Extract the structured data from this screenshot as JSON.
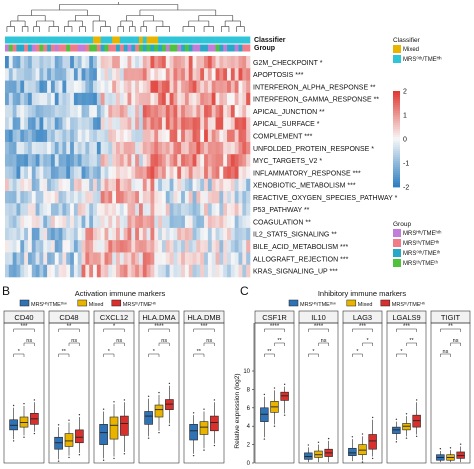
{
  "chart_data": [
    {
      "id": "heatmap",
      "type": "heatmap",
      "annotation_rows": [
        "Classifier",
        "Group"
      ],
      "rows": [
        {
          "name": "G2M_CHECKPOINT",
          "sig": "*"
        },
        {
          "name": "APOPTOSIS",
          "sig": "***"
        },
        {
          "name": "INTERFERON_ALPHA_RESPONSE",
          "sig": "**"
        },
        {
          "name": "INTERFERON_GAMMA_RESPONSE",
          "sig": "**"
        },
        {
          "name": "APICAL_JUNCTION",
          "sig": "**"
        },
        {
          "name": "APICAL_SURFACE",
          "sig": "*"
        },
        {
          "name": "COMPLEMENT",
          "sig": "***"
        },
        {
          "name": "UNFOLDED_PROTEIN_RESPONSE",
          "sig": "*"
        },
        {
          "name": "MYC_TARGETS_V2",
          "sig": "*"
        },
        {
          "name": "INFLAMMATORY_RESPONSE",
          "sig": "***"
        },
        {
          "name": "XENOBIOTIC_METABOLISM",
          "sig": "***"
        },
        {
          "name": "REACTIVE_OXYGEN_SPECIES_PATHWAY",
          "sig": "*"
        },
        {
          "name": "P53_PATHWAY",
          "sig": "**"
        },
        {
          "name": "COAGULATION",
          "sig": "**"
        },
        {
          "name": "IL2_STAT5_SIGNALING",
          "sig": "**"
        },
        {
          "name": "BILE_ACID_METABOLISM",
          "sig": "***"
        },
        {
          "name": "ALLOGRAFT_REJECTION",
          "sig": "***"
        },
        {
          "name": "KRAS_SIGNALING_UP",
          "sig": "***"
        }
      ],
      "color_scale": {
        "min": -2,
        "max": 2,
        "ticks": [
          2,
          1,
          0,
          -1,
          -2
        ],
        "low": "#2f7fc1",
        "mid": "#f7f7f7",
        "high": "#e03a32"
      },
      "legend_classifier": {
        "title": "Classifier",
        "items": [
          "Mixed",
          "MRS⁰ᵗʰ/TMEᴴʰ"
        ],
        "colors": [
          "#e8b400",
          "#2fc5d8"
        ]
      },
      "legend_group": {
        "title": "Group",
        "items": [
          "MRSᴴʰ/TMEʰᵗʰ",
          "MRSᵗʰ/TMEᴴʰ",
          "MRS⁰ᵗʰ/TMEᵗʰ",
          "MRSᵗʰ/TMEᵗʰ"
        ],
        "colors": [
          "#c27dd8",
          "#f07c8a",
          "#27a8c8",
          "#4fc23c"
        ]
      }
    },
    {
      "id": "activation",
      "type": "box",
      "panel_letter": "B",
      "title": "Activation immune markers",
      "legend": [
        "MRSᴴʰ/TMEᵗʰʷ",
        "Mixed",
        "MRSᵗʰ/TMEᴴʰ"
      ],
      "colors": [
        "#2f72b5",
        "#e8b400",
        "#d8302c"
      ],
      "categories": [
        "CD40",
        "CD48",
        "CXCL12",
        "HLA.DMA",
        "HLA.DMB"
      ],
      "sig_top": [
        "***",
        "**",
        "*",
        "****",
        "***"
      ],
      "sig_pairs": [
        [
          "*",
          "ns"
        ],
        [
          "**",
          "ns"
        ],
        [
          "*",
          "ns"
        ],
        [
          "*",
          "ns"
        ],
        [
          "**",
          "ns"
        ]
      ],
      "ylim": [
        0,
        10
      ],
      "boxes": [
        [
          [
            2.6,
            3.6,
            4.1,
            4.7,
            6.0
          ],
          [
            3.0,
            3.9,
            4.4,
            5.0,
            6.2
          ],
          [
            3.4,
            4.2,
            4.8,
            5.4,
            6.6
          ]
        ],
        [
          [
            0.4,
            1.5,
            2.2,
            2.8,
            3.9
          ],
          [
            0.8,
            1.8,
            2.4,
            3.2,
            4.4
          ],
          [
            1.1,
            2.2,
            2.8,
            3.6,
            5.0
          ]
        ],
        [
          [
            0.5,
            2.0,
            3.3,
            4.2,
            5.6
          ],
          [
            0.7,
            2.6,
            4.1,
            5.0,
            6.4
          ],
          [
            1.2,
            3.0,
            4.3,
            5.1,
            6.6
          ]
        ],
        [
          [
            2.9,
            4.2,
            5.1,
            5.6,
            7.0
          ],
          [
            3.5,
            5.0,
            5.8,
            6.3,
            7.4
          ],
          [
            4.3,
            5.8,
            6.4,
            6.9,
            8.4
          ]
        ],
        [
          [
            1.0,
            2.5,
            3.5,
            4.2,
            5.2
          ],
          [
            1.6,
            3.1,
            3.9,
            4.5,
            5.6
          ],
          [
            2.1,
            3.5,
            4.4,
            5.1,
            6.6
          ]
        ]
      ]
    },
    {
      "id": "inhibitory",
      "type": "box",
      "panel_letter": "C",
      "title": "Inhibitory immune markers",
      "ylabel": "Relative expression (log2)",
      "legend": [
        "MRSᴴʰ/TMEᵗʰʷ",
        "Mixed",
        "MRSᵗʰ/TMEᴴʰ"
      ],
      "colors": [
        "#2f72b5",
        "#e8b400",
        "#d8302c"
      ],
      "categories": [
        "CSF1R",
        "IL10",
        "LAG3",
        "LGALS9",
        "TIGIT"
      ],
      "sig_top": [
        "****",
        "****",
        "***",
        "***",
        "**"
      ],
      "sig_pairs": [
        [
          "**",
          "**"
        ],
        [
          "*",
          "ns"
        ],
        [
          "*",
          "*"
        ],
        [
          "*",
          "**"
        ],
        [
          "ns",
          "ns"
        ]
      ],
      "yticks": [
        0,
        2,
        4,
        6,
        8,
        10
      ],
      "ylim": [
        0,
        10
      ],
      "boxes": [
        [
          [
            2.8,
            4.5,
            5.3,
            6.0,
            7.2
          ],
          [
            4.2,
            5.5,
            6.1,
            6.7,
            7.9
          ],
          [
            5.4,
            6.8,
            7.3,
            7.7,
            8.3
          ]
        ],
        [
          [
            0.1,
            0.4,
            0.7,
            1.1,
            1.7
          ],
          [
            0.1,
            0.6,
            0.9,
            1.3,
            2.0
          ],
          [
            0.1,
            0.7,
            1.1,
            1.5,
            2.4
          ]
        ],
        [
          [
            0.2,
            0.8,
            1.1,
            1.6,
            2.6
          ],
          [
            0.3,
            0.9,
            1.4,
            2.0,
            2.9
          ],
          [
            0.7,
            1.5,
            2.4,
            3.1,
            4.7
          ]
        ],
        [
          [
            2.5,
            3.2,
            3.6,
            3.9,
            4.5
          ],
          [
            2.9,
            3.6,
            4.0,
            4.3,
            5.1
          ],
          [
            3.1,
            3.9,
            4.6,
            5.2,
            6.6
          ]
        ],
        [
          [
            0.1,
            0.3,
            0.6,
            0.9,
            1.3
          ],
          [
            0.1,
            0.3,
            0.6,
            0.9,
            1.4
          ],
          [
            0.1,
            0.5,
            0.8,
            1.2,
            1.8
          ]
        ]
      ]
    }
  ]
}
